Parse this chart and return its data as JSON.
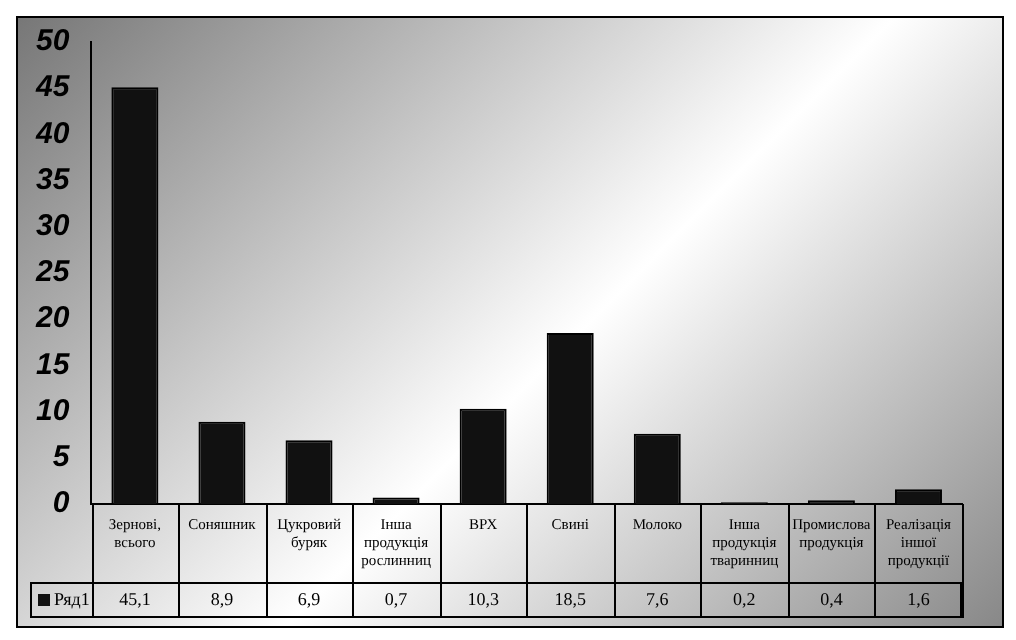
{
  "chart_data": {
    "type": "bar",
    "categories": [
      "Зернові, всього",
      "Соняшник",
      "Цукровий буряк",
      "Інша продукція рослинниц",
      "ВРХ",
      "Свині",
      "Молоко",
      "Інша продукція тваринниц",
      "Промислова продукція",
      "Реалізація іншої продукції"
    ],
    "series": [
      {
        "name": "Ряд1",
        "color": "#111111",
        "values": [
          45.1,
          8.9,
          6.9,
          0.7,
          10.3,
          18.5,
          7.6,
          0.2,
          0.4,
          1.6
        ],
        "value_labels": [
          "45,1",
          "8,9",
          "6,9",
          "0,7",
          "10,3",
          "18,5",
          "7,6",
          "0,2",
          "0,4",
          "1,6"
        ]
      }
    ],
    "ylim": [
      0,
      50
    ],
    "yticks": [
      0,
      5,
      10,
      15,
      20,
      25,
      30,
      35,
      40,
      45,
      50
    ],
    "grid": false,
    "legend": "bottom left",
    "data_labels": true
  }
}
